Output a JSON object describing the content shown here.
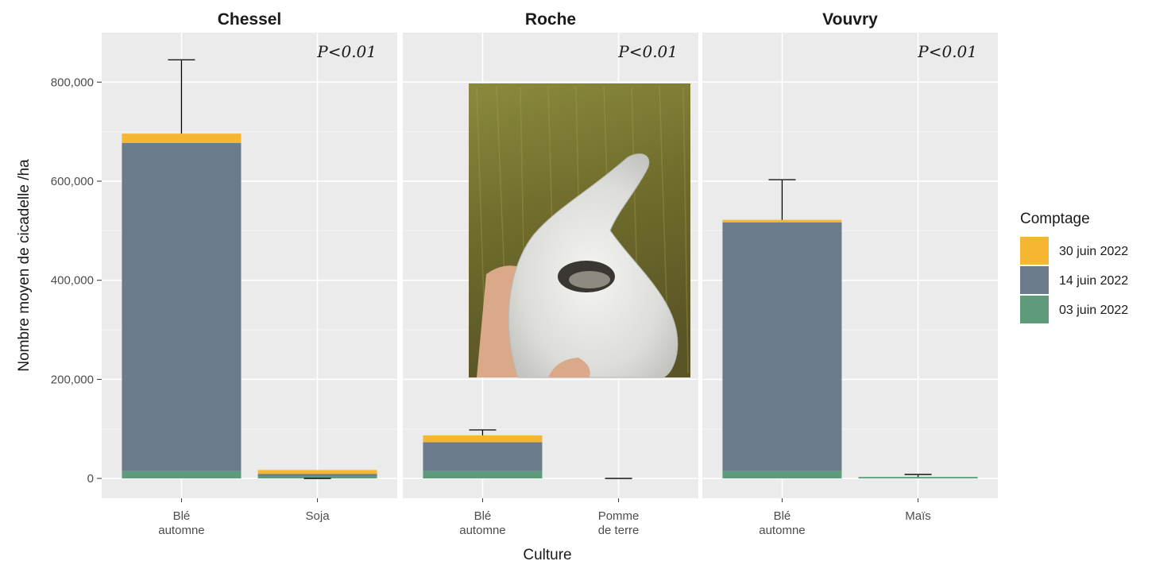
{
  "chart_data": {
    "type": "bar",
    "stacked": true,
    "error_bars": true,
    "xlabel": "Culture",
    "ylabel": "Nombre moyen de cicadelle /ha",
    "ylim": [
      -40000,
      900000
    ],
    "yticks": [
      0,
      200000,
      400000,
      600000,
      800000
    ],
    "ytick_labels": [
      "0",
      "200,000",
      "400,000",
      "600,000",
      "800,000"
    ],
    "grid": true,
    "legend": {
      "title": "Comptage",
      "placement": "right",
      "entries": [
        {
          "label": "30 juin 2022",
          "color": "#F5B731"
        },
        {
          "label": "14 juin 2022",
          "color": "#6B7B8C"
        },
        {
          "label": "03 juin 2022",
          "color": "#5D9B7A"
        }
      ]
    },
    "facets": [
      {
        "title": "Chessel",
        "annotation": "P<0.01",
        "categories": [
          [
            "Blé",
            "automne"
          ],
          [
            "Soja"
          ]
        ],
        "series": [
          {
            "name": "03 juin 2022",
            "values": [
              15000,
              5000
            ]
          },
          {
            "name": "14 juin 2022",
            "values": [
              662000,
              4000
            ]
          },
          {
            "name": "30 juin 2022",
            "values": [
              19000,
              8000
            ]
          }
        ],
        "error_top": [
          845000,
          0
        ]
      },
      {
        "title": "Roche",
        "annotation": "P<0.01",
        "categories": [
          [
            "Blé",
            "automne"
          ],
          [
            "Pomme",
            "de terre"
          ]
        ],
        "series": [
          {
            "name": "03 juin 2022",
            "values": [
              15000,
              0
            ]
          },
          {
            "name": "14 juin 2022",
            "values": [
              58000,
              0
            ]
          },
          {
            "name": "30 juin 2022",
            "values": [
              14000,
              0
            ]
          }
        ],
        "error_top": [
          98000,
          0
        ]
      },
      {
        "title": "Vouvry",
        "annotation": "P<0.01",
        "categories": [
          [
            "Blé",
            "automne"
          ],
          [
            "Maïs"
          ]
        ],
        "series": [
          {
            "name": "03 juin 2022",
            "values": [
              15000,
              3000
            ]
          },
          {
            "name": "14 juin 2022",
            "values": [
              502000,
              0
            ]
          },
          {
            "name": "30 juin 2022",
            "values": [
              5000,
              0
            ]
          }
        ],
        "error_top": [
          603000,
          8000
        ]
      }
    ]
  }
}
